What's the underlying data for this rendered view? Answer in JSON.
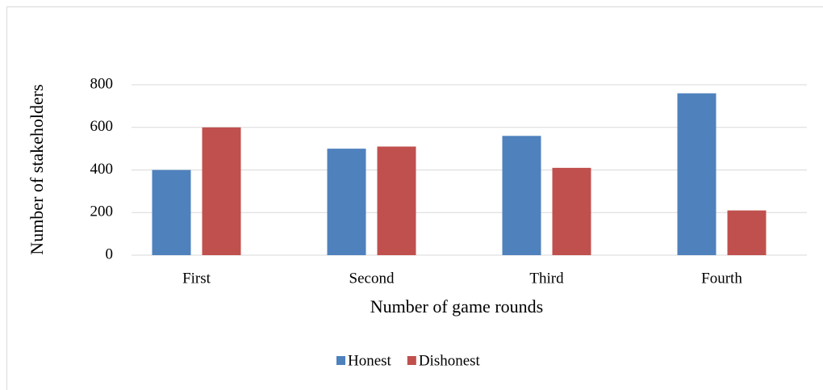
{
  "chart_data": {
    "type": "bar",
    "x_label": "Number of game rounds",
    "y_label": "Number of stakeholders",
    "categories": [
      "First",
      "Second",
      "Third",
      "Fourth"
    ],
    "series": [
      {
        "name": "Honest",
        "color": "#4f81bd",
        "values": [
          400,
          500,
          560,
          760
        ]
      },
      {
        "name": "Dishonest",
        "color": "#c0504d",
        "values": [
          600,
          510,
          410,
          210
        ]
      }
    ],
    "ylim": [
      0,
      800
    ],
    "yticks": [
      0,
      200,
      400,
      600,
      800
    ],
    "grid": true,
    "legend": "bottom"
  }
}
